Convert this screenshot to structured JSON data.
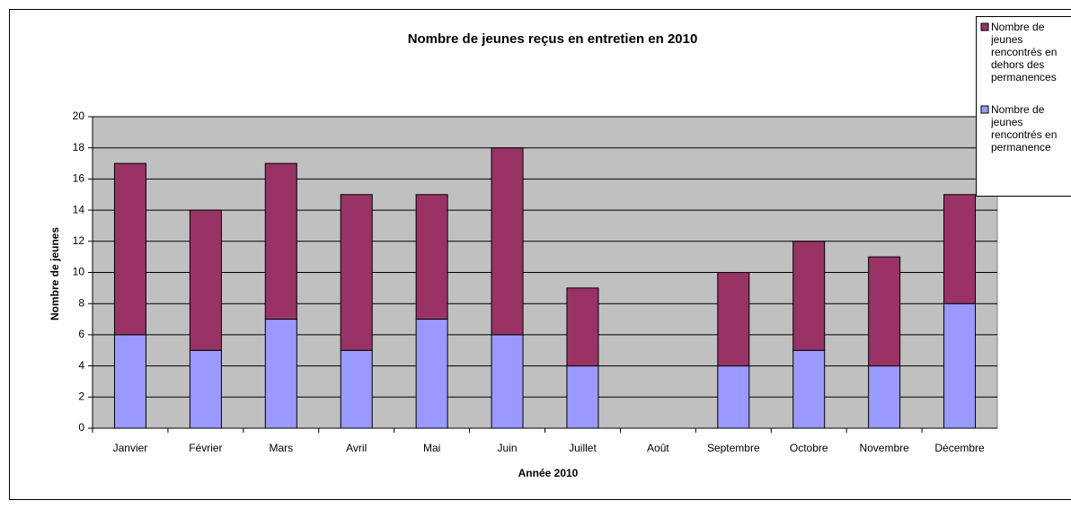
{
  "chart_data": {
    "type": "stacked_bar",
    "title": "Nombre de jeunes reçus en entretien en 2010",
    "x_label": "Année 2010",
    "y_label": "Nombre de jeunes",
    "categories": [
      "Janvier",
      "Février",
      "Mars",
      "Avril",
      "Mai",
      "Juin",
      "Juillet",
      "Août",
      "Septembre",
      "Octobre",
      "Novembre",
      "Décembre"
    ],
    "series": [
      {
        "name": "Nombre de jeunes rencontrés en permanence",
        "color": "#9999ff",
        "values": [
          6,
          5,
          7,
          5,
          7,
          6,
          4,
          0,
          4,
          5,
          4,
          8
        ]
      },
      {
        "name": "Nombre de jeunes rencontrés en dehors des permanences",
        "color": "#993366",
        "values": [
          11,
          9,
          10,
          10,
          8,
          12,
          5,
          0,
          6,
          7,
          7,
          7
        ]
      }
    ],
    "ylim": [
      0,
      20
    ],
    "yticks": [
      0,
      2,
      4,
      6,
      8,
      10,
      12,
      14,
      16,
      18,
      20
    ],
    "grid": true,
    "legend": "top-right"
  }
}
